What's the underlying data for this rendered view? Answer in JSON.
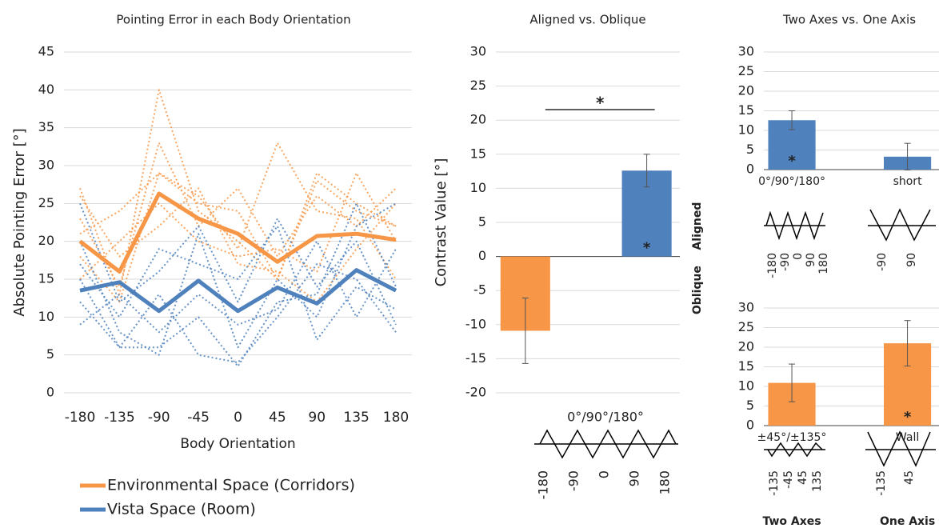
{
  "chart_data": [
    {
      "type": "line",
      "title": "Pointing Error in each Body Orientation",
      "x_label": "Body Orientation",
      "y_label": "Absolute Pointing Error [°]",
      "categories": [
        "-180",
        "-135",
        "-90",
        "-45",
        "0",
        "45",
        "90",
        "135",
        "180"
      ],
      "ylim": [
        0,
        45
      ],
      "yticks": [
        0,
        5,
        10,
        15,
        20,
        25,
        30,
        35,
        40,
        45
      ],
      "grid": true,
      "legend": "bottom",
      "series": [
        {
          "color": "#f79646",
          "style": "dotted",
          "values": [
            27,
            13,
            40,
            24,
            20,
            15,
            28,
            24,
            22
          ]
        },
        {
          "color": "#f79646",
          "style": "dotted",
          "values": [
            23,
            14,
            33,
            22,
            27,
            18,
            26,
            22,
            27
          ]
        },
        {
          "color": "#f79646",
          "style": "dotted",
          "values": [
            18,
            12,
            29,
            26,
            19,
            33,
            24,
            23,
            15
          ]
        },
        {
          "color": "#f79646",
          "style": "dotted",
          "values": [
            21,
            24,
            29,
            25,
            24,
            15,
            29,
            25,
            22
          ]
        },
        {
          "color": "#f79646",
          "style": "dotted",
          "values": [
            15,
            20,
            25,
            20,
            18,
            19,
            16,
            29,
            20
          ]
        },
        {
          "color": "#f79646",
          "style": "dotted",
          "values": [
            26,
            18,
            22,
            27,
            17,
            16,
            12,
            19,
            25
          ]
        },
        {
          "color": "#4f81bd",
          "style": "dotted",
          "values": [
            25,
            12,
            16,
            22,
            12,
            23,
            14,
            20,
            9
          ]
        },
        {
          "color": "#4f81bd",
          "style": "dotted",
          "values": [
            20,
            8,
            5,
            21,
            6,
            15,
            10,
            22,
            25
          ]
        },
        {
          "color": "#4f81bd",
          "style": "dotted",
          "values": [
            12,
            6,
            13,
            5,
            4,
            10,
            17,
            15,
            8
          ]
        },
        {
          "color": "#4f81bd",
          "style": "dotted",
          "values": [
            17,
            10,
            19,
            17,
            15,
            22,
            7,
            14,
            11
          ]
        },
        {
          "color": "#4f81bd",
          "style": "dotted",
          "values": [
            9,
            13,
            8,
            13,
            9,
            11,
            20,
            10,
            19
          ]
        },
        {
          "color": "#4f81bd",
          "style": "dotted",
          "values": [
            15,
            6,
            6,
            10,
            3.5,
            12,
            13,
            25,
            14
          ]
        },
        {
          "name": "Environmental Space (Corridors)",
          "color": "#f79646",
          "style": "solid",
          "values": [
            20,
            16,
            26.3,
            23,
            21,
            17.3,
            20.7,
            21,
            20.2
          ]
        },
        {
          "name": "Vista Space (Room)",
          "color": "#4f81bd",
          "style": "solid",
          "values": [
            13.5,
            14.6,
            10.8,
            14.8,
            10.8,
            13.9,
            11.8,
            16.2,
            13.5
          ]
        }
      ]
    },
    {
      "type": "bar",
      "title": "Aligned vs. Oblique",
      "y_label": "Contrast Value [°]",
      "categories": [
        "Oblique",
        "Aligned"
      ],
      "values": [
        -10.9,
        12.6
      ],
      "errors": [
        4.8,
        2.4
      ],
      "colors": [
        "#f79646",
        "#4f81bd"
      ],
      "ylim": [
        -20,
        30
      ],
      "yticks": [
        -20,
        -15,
        -10,
        -5,
        0,
        5,
        10,
        15,
        20,
        25,
        30
      ],
      "grid": true,
      "annotations": [
        {
          "text": "*",
          "between": [
            "Oblique",
            "Aligned"
          ]
        },
        {
          "text": "*",
          "at": "Aligned"
        }
      ],
      "diagrams": [
        {
          "label": "0°/90°/180°",
          "ticks": [
            "-180",
            "-90",
            "0",
            "90",
            "180"
          ]
        }
      ]
    },
    {
      "type": "bar",
      "title": "Two Axes vs. One Axis",
      "categories": [
        "0°/90°/180°",
        "short"
      ],
      "values": [
        12.6,
        3.3
      ],
      "errors": [
        2.4,
        3.4
      ],
      "colors": [
        "#4f81bd",
        "#4f81bd"
      ],
      "ylim": [
        0,
        30
      ],
      "yticks": [
        0,
        5,
        10,
        15,
        20,
        25,
        30
      ],
      "grid": true,
      "annotations": [
        {
          "text": "*",
          "at": "0°/90°/180°"
        }
      ],
      "diagrams": [
        {
          "ticks": [
            "-180",
            "-90",
            "0",
            "90",
            "180"
          ]
        },
        {
          "ticks": [
            "-90",
            "90"
          ]
        }
      ]
    },
    {
      "type": "bar",
      "categories": [
        "±45°/±135°",
        "Wall"
      ],
      "values": [
        10.9,
        21
      ],
      "errors": [
        4.8,
        5.8
      ],
      "colors": [
        "#f79646",
        "#f79646"
      ],
      "ylim": [
        0,
        30
      ],
      "yticks": [
        0,
        5,
        10,
        15,
        20,
        25,
        30
      ],
      "grid": true,
      "annotations": [
        {
          "text": "*",
          "at": "Wall"
        }
      ],
      "diagrams": [
        {
          "ticks": [
            "-135",
            "-45",
            "45",
            "135"
          ]
        },
        {
          "ticks": [
            "-135",
            "45"
          ]
        }
      ],
      "group_labels": [
        "Two Axes",
        "One Axis"
      ]
    }
  ]
}
